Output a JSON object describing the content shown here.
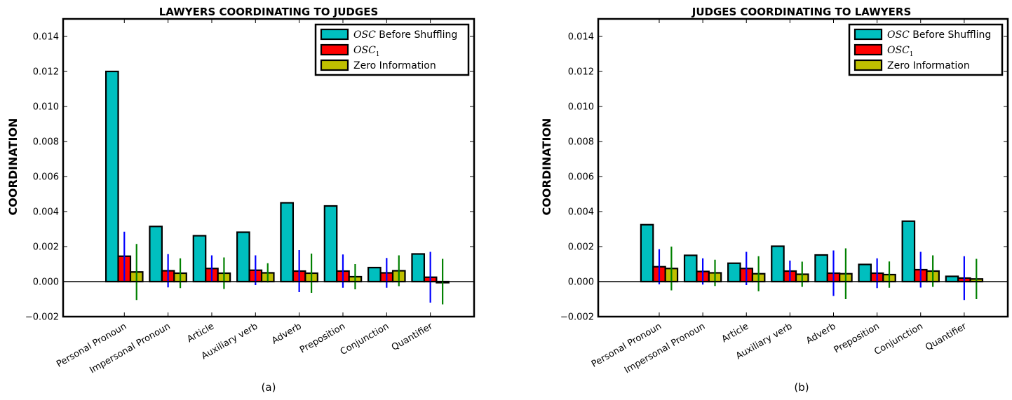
{
  "chart_data": [
    {
      "type": "bar",
      "title": "LAWYERS COORDINATING TO JUDGES",
      "ylabel": "COORDINATION",
      "xlabel": "",
      "caption": "(a)",
      "ylim": [
        -0.002,
        0.015
      ],
      "yticks": [
        "−0.002",
        "0.000",
        "0.002",
        "0.004",
        "0.006",
        "0.008",
        "0.010",
        "0.012",
        "0.014"
      ],
      "ytick_values": [
        -0.002,
        0,
        0.002,
        0.004,
        0.006,
        0.008,
        0.01,
        0.012,
        0.014
      ],
      "grid": false,
      "legend_position": "top-right",
      "categories": [
        "Personal Pronoun",
        "Impersonal Pronoun",
        "Article",
        "Auxiliary verb",
        "Adverb",
        "Preposition",
        "Conjunction",
        "Quantifier"
      ],
      "series": [
        {
          "name": "OSC Before Shuffling",
          "name_italic": "OSC",
          "name_rest": " Before Shuffling",
          "color": "#00bfbf",
          "values": [
            0.012,
            0.00315,
            0.00262,
            0.00282,
            0.0045,
            0.00432,
            0.0008,
            0.00158
          ],
          "errors": null
        },
        {
          "name": "OSC1",
          "name_italic": "OSC",
          "name_sub": "1",
          "color": "#ff0000",
          "error_color": "#0000ff",
          "values": [
            0.00145,
            0.00062,
            0.00075,
            0.00065,
            0.0006,
            0.0006,
            0.0005,
            0.00025
          ],
          "errors": [
            0.0014,
            0.00095,
            0.00075,
            0.00085,
            0.0012,
            0.00095,
            0.00085,
            0.00145
          ]
        },
        {
          "name": "Zero Information",
          "color": "#bfbf00",
          "error_color": "#008000",
          "values": [
            0.00055,
            0.00048,
            0.00048,
            0.0005,
            0.00048,
            0.00028,
            0.00062,
            0.0
          ],
          "errors": [
            0.0016,
            0.00085,
            0.0009,
            0.00055,
            0.00112,
            0.00072,
            0.00088,
            0.0013
          ]
        }
      ]
    },
    {
      "type": "bar",
      "title": "JUDGES COORDINATING TO LAWYERS",
      "ylabel": "COORDINATION",
      "xlabel": "",
      "caption": "(b)",
      "ylim": [
        -0.002,
        0.015
      ],
      "yticks": [
        "−0.002",
        "0.000",
        "0.002",
        "0.004",
        "0.006",
        "0.008",
        "0.010",
        "0.012",
        "0.014"
      ],
      "ytick_values": [
        -0.002,
        0,
        0.002,
        0.004,
        0.006,
        0.008,
        0.01,
        0.012,
        0.014
      ],
      "grid": false,
      "legend_position": "top-right",
      "categories": [
        "Personal Pronoun",
        "Impersonal Pronoun",
        "Article",
        "Auxiliary verb",
        "Adverb",
        "Preposition",
        "Conjunction",
        "Quantifier"
      ],
      "series": [
        {
          "name": "OSC Before Shuffling",
          "name_italic": "OSC",
          "name_rest": " Before Shuffling",
          "color": "#00bfbf",
          "values": [
            0.00325,
            0.0015,
            0.00105,
            0.00202,
            0.00152,
            0.00098,
            0.00345,
            0.0003
          ],
          "errors": null
        },
        {
          "name": "OSC1",
          "name_italic": "OSC",
          "name_sub": "1",
          "color": "#ff0000",
          "error_color": "#0000ff",
          "values": [
            0.00085,
            0.00058,
            0.00075,
            0.0006,
            0.00048,
            0.00048,
            0.00068,
            0.0002
          ],
          "errors": [
            0.001,
            0.00075,
            0.00095,
            0.0006,
            0.0013,
            0.00085,
            0.00102,
            0.00125
          ]
        },
        {
          "name": "Zero Information",
          "color": "#bfbf00",
          "error_color": "#008000",
          "values": [
            0.00075,
            0.0005,
            0.00045,
            0.00042,
            0.00045,
            0.0004,
            0.0006,
            0.00015
          ],
          "errors": [
            0.00125,
            0.00075,
            0.001,
            0.00072,
            0.00145,
            0.00075,
            0.0009,
            0.00115
          ]
        }
      ]
    }
  ]
}
